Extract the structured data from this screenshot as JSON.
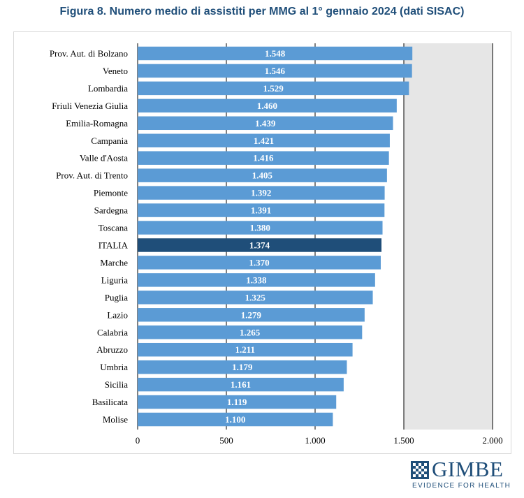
{
  "chart_data": {
    "type": "bar",
    "orientation": "horizontal",
    "title": "Figura 8. Numero medio di assistiti per MMG al 1° gennaio 2024 (dati SISAC)",
    "categories": [
      "Prov. Aut. di Bolzano",
      "Veneto",
      "Lombardia",
      "Friuli Venezia Giulia",
      "Emilia-Romagna",
      "Campania",
      "Valle d'Aosta",
      "Prov. Aut. di Trento",
      "Piemonte",
      "Sardegna",
      "Toscana",
      "ITALIA",
      "Marche",
      "Liguria",
      "Puglia",
      "Lazio",
      "Calabria",
      "Abruzzo",
      "Umbria",
      "Sicilia",
      "Basilicata",
      "Molise"
    ],
    "values": [
      1548,
      1546,
      1529,
      1460,
      1439,
      1421,
      1416,
      1405,
      1392,
      1391,
      1380,
      1374,
      1370,
      1338,
      1325,
      1279,
      1265,
      1211,
      1179,
      1161,
      1119,
      1100
    ],
    "value_labels": [
      "1.548",
      "1.546",
      "1.529",
      "1.460",
      "1.439",
      "1.421",
      "1.416",
      "1.405",
      "1.392",
      "1.391",
      "1.380",
      "1.374",
      "1.370",
      "1.338",
      "1.325",
      "1.279",
      "1.265",
      "1.211",
      "1.179",
      "1.161",
      "1.119",
      "1.100"
    ],
    "highlight_category": "ITALIA",
    "xlim": [
      0,
      2000
    ],
    "x_ticks": [
      0,
      500,
      1000,
      1500,
      2000
    ],
    "x_tick_labels": [
      "0",
      "500",
      "1.000",
      "1.500",
      "2.000"
    ],
    "grid": true,
    "colors": {
      "bar": "#5b9bd5",
      "highlight": "#1f4e79",
      "background_band": "#e6e6e6",
      "gridline": "#000000"
    }
  },
  "logo": {
    "name": "GIMBE",
    "tagline": "EVIDENCE FOR HEALTH"
  }
}
